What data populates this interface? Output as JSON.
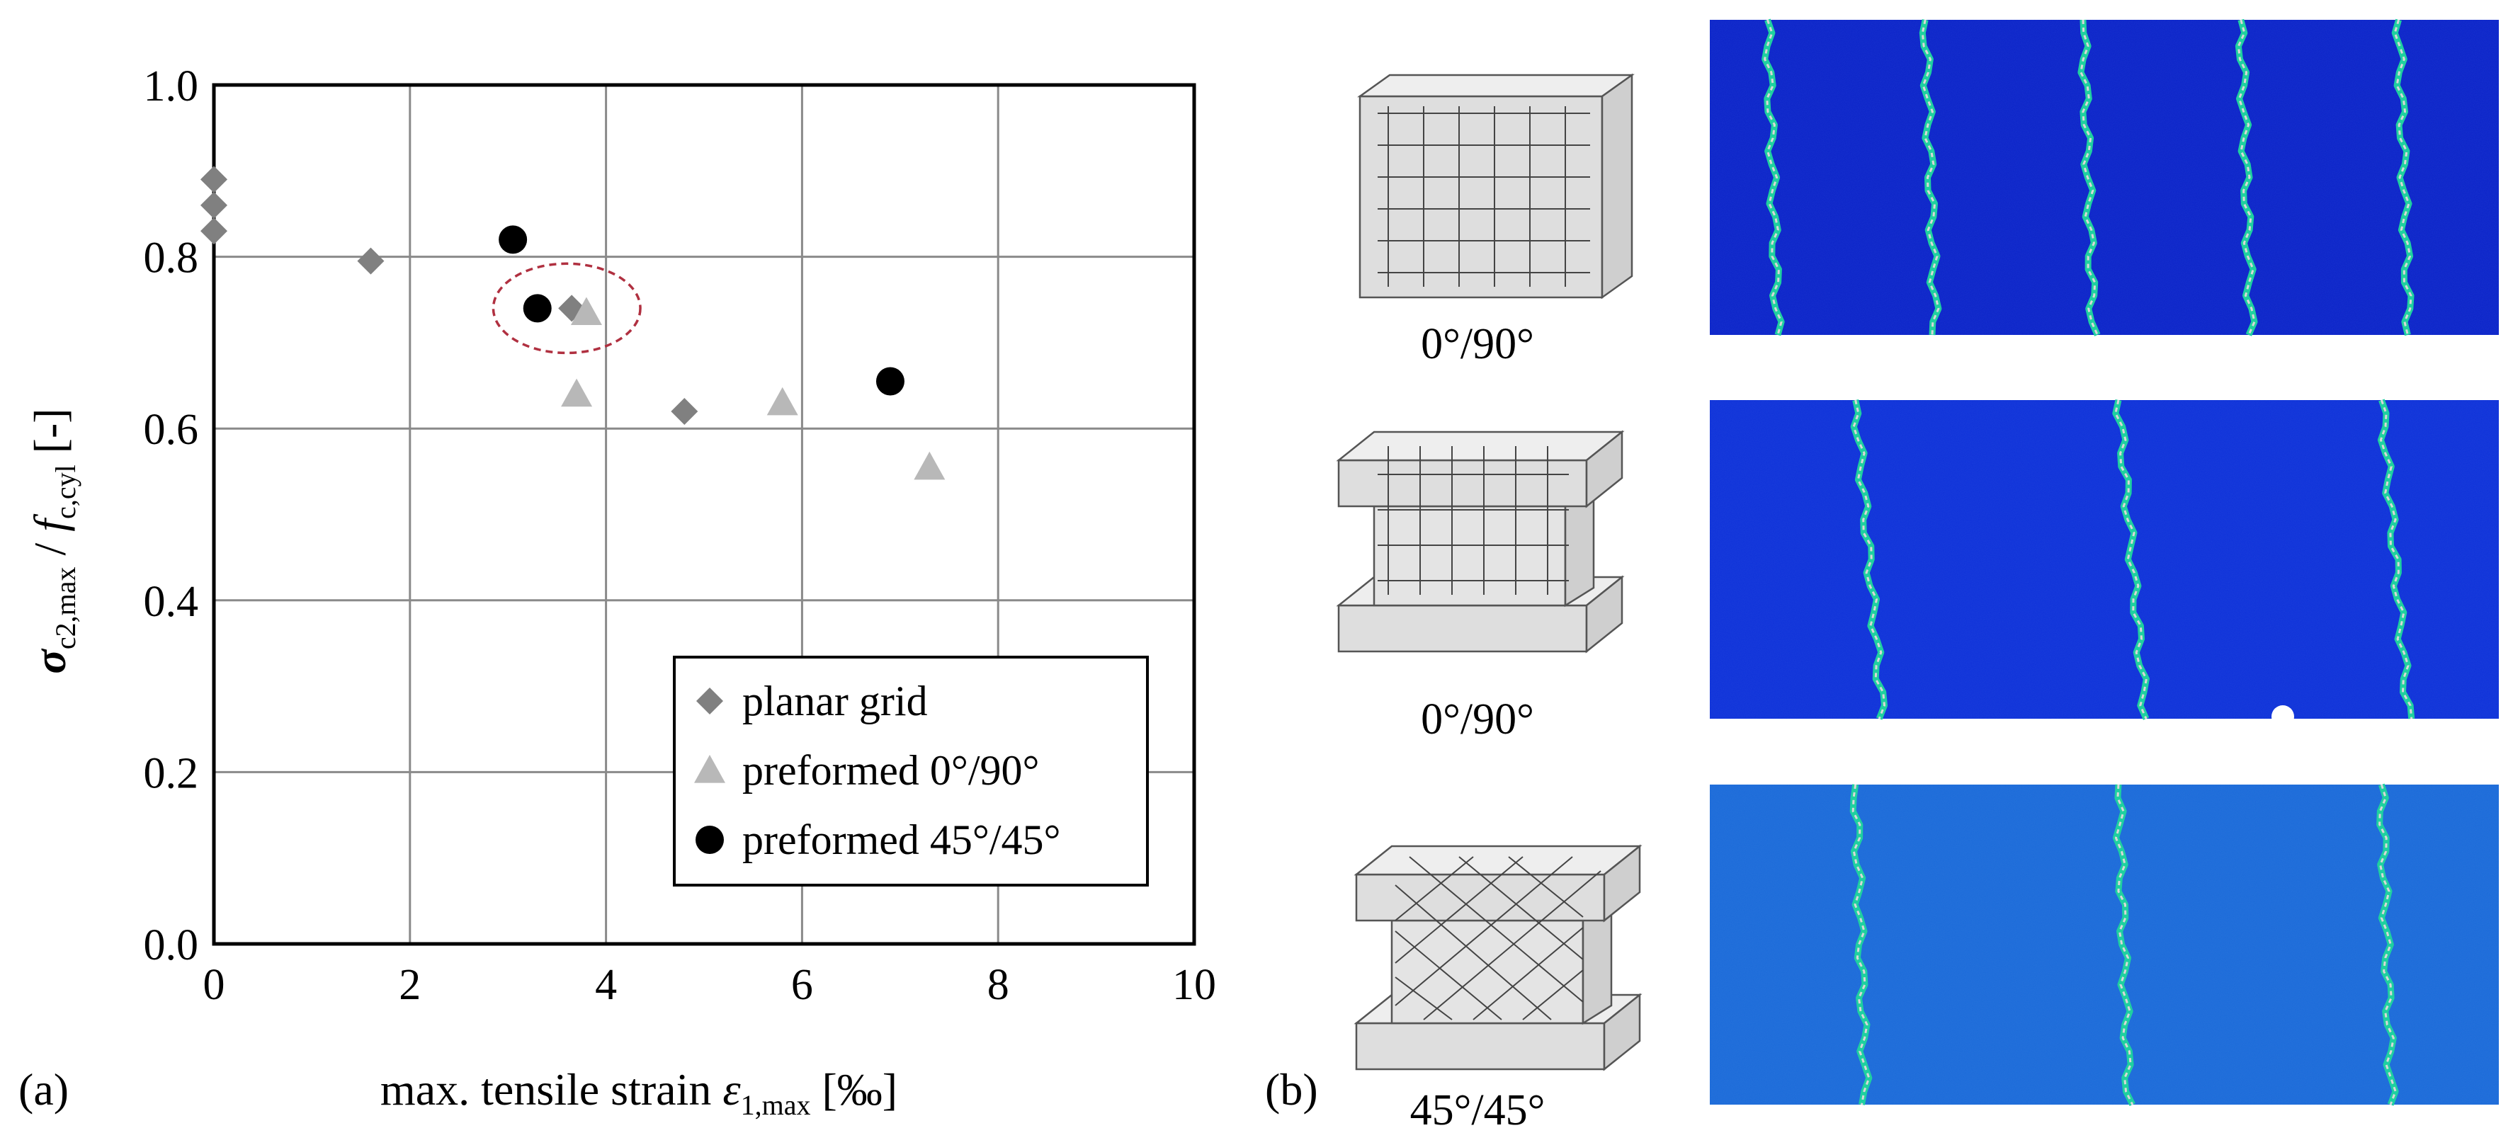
{
  "chart_data": {
    "type": "scatter",
    "panel_label": "(a)",
    "xlabel": {
      "main": "max. tensile strain ",
      "symbol": "ε",
      "sub": "1,max",
      "unit": " [‰]"
    },
    "ylabel": {
      "sym1": "σ",
      "sub1": "c2,max",
      "sep": " / ",
      "sym2": "f",
      "sub2": "c,cyl",
      "unit": " [-]"
    },
    "xlim": [
      0,
      10
    ],
    "ylim": [
      0,
      1.0
    ],
    "xticks": [
      0,
      2,
      4,
      6,
      8,
      10
    ],
    "xtick_labels": [
      "0",
      "2",
      "4",
      "6",
      "8",
      "10"
    ],
    "yticks": [
      0,
      0.2,
      0.4,
      0.6,
      0.8,
      1.0
    ],
    "ytick_labels": [
      "0.0",
      "0.2",
      "0.4",
      "0.6",
      "0.8",
      "1.0"
    ],
    "grid": true,
    "legend_position": "bottom-right",
    "series": [
      {
        "name": "planar grid",
        "marker": "diamond",
        "color": "#808080",
        "points": [
          [
            0,
            0.89
          ],
          [
            0,
            0.86
          ],
          [
            0,
            0.83
          ],
          [
            1.6,
            0.795
          ],
          [
            3.65,
            0.74
          ],
          [
            4.8,
            0.62
          ]
        ]
      },
      {
        "name": "preformed 0°/90°",
        "marker": "triangle",
        "color": "#b8b8b8",
        "points": [
          [
            3.8,
            0.735
          ],
          [
            3.7,
            0.64
          ],
          [
            5.8,
            0.63
          ],
          [
            7.3,
            0.555
          ]
        ]
      },
      {
        "name": "preformed 45°/45°",
        "marker": "circle",
        "color": "#000000",
        "points": [
          [
            3.05,
            0.82
          ],
          [
            3.3,
            0.74
          ],
          [
            6.9,
            0.655
          ]
        ]
      }
    ],
    "annotation": {
      "type": "dashed-ellipse",
      "color": "#b03040",
      "center": [
        3.6,
        0.74
      ],
      "rx": 0.75,
      "ry": 0.052
    }
  },
  "panel_b": {
    "label": "(b)",
    "items": [
      {
        "caption": "0°/90°",
        "specimen": "planar-grid",
        "crack_count": 5,
        "field": "#0a22c8"
      },
      {
        "caption": "0°/90°",
        "specimen": "preformed-0-90",
        "crack_count": 3,
        "field": "#0d30d8"
      },
      {
        "caption": "45°/45°",
        "specimen": "preformed-45-45",
        "crack_count": 3,
        "field": "#1a6ad8"
      }
    ]
  }
}
